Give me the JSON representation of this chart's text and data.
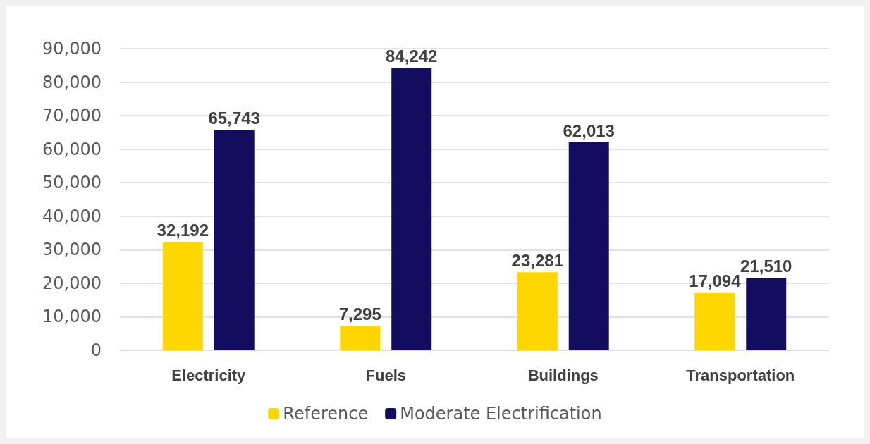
{
  "chart_data": {
    "type": "bar",
    "categories": [
      "Electricity",
      "Fuels",
      "Buildings",
      "Transportation"
    ],
    "series": [
      {
        "name": "Reference",
        "color": "#ffd700",
        "values": [
          32192,
          7295,
          23281,
          17094
        ],
        "value_labels": [
          "32,192",
          "7,295",
          "23,281",
          "17,094"
        ]
      },
      {
        "name": "Moderate Electrification",
        "color": "#140c5e",
        "values": [
          65743,
          84242,
          62013,
          21510
        ],
        "value_labels": [
          "65,743",
          "84,242",
          "62,013",
          "21,510"
        ]
      }
    ],
    "ylim": [
      0,
      90000
    ],
    "yticks": [
      0,
      {
        "value": 10000,
        "label": "10,000"
      },
      {
        "value": 20000,
        "label": "20,000"
      },
      {
        "value": 30000,
        "label": "30,000"
      },
      {
        "value": 40000,
        "label": "40,000"
      },
      {
        "value": 50000,
        "label": "50,000"
      },
      {
        "value": 60000,
        "label": "60,000"
      },
      {
        "value": 70000,
        "label": "70,000"
      },
      {
        "value": 80000,
        "label": "80,000"
      },
      {
        "value": 90000,
        "label": "90,000"
      }
    ],
    "grid": "y",
    "legend": "bottom"
  }
}
